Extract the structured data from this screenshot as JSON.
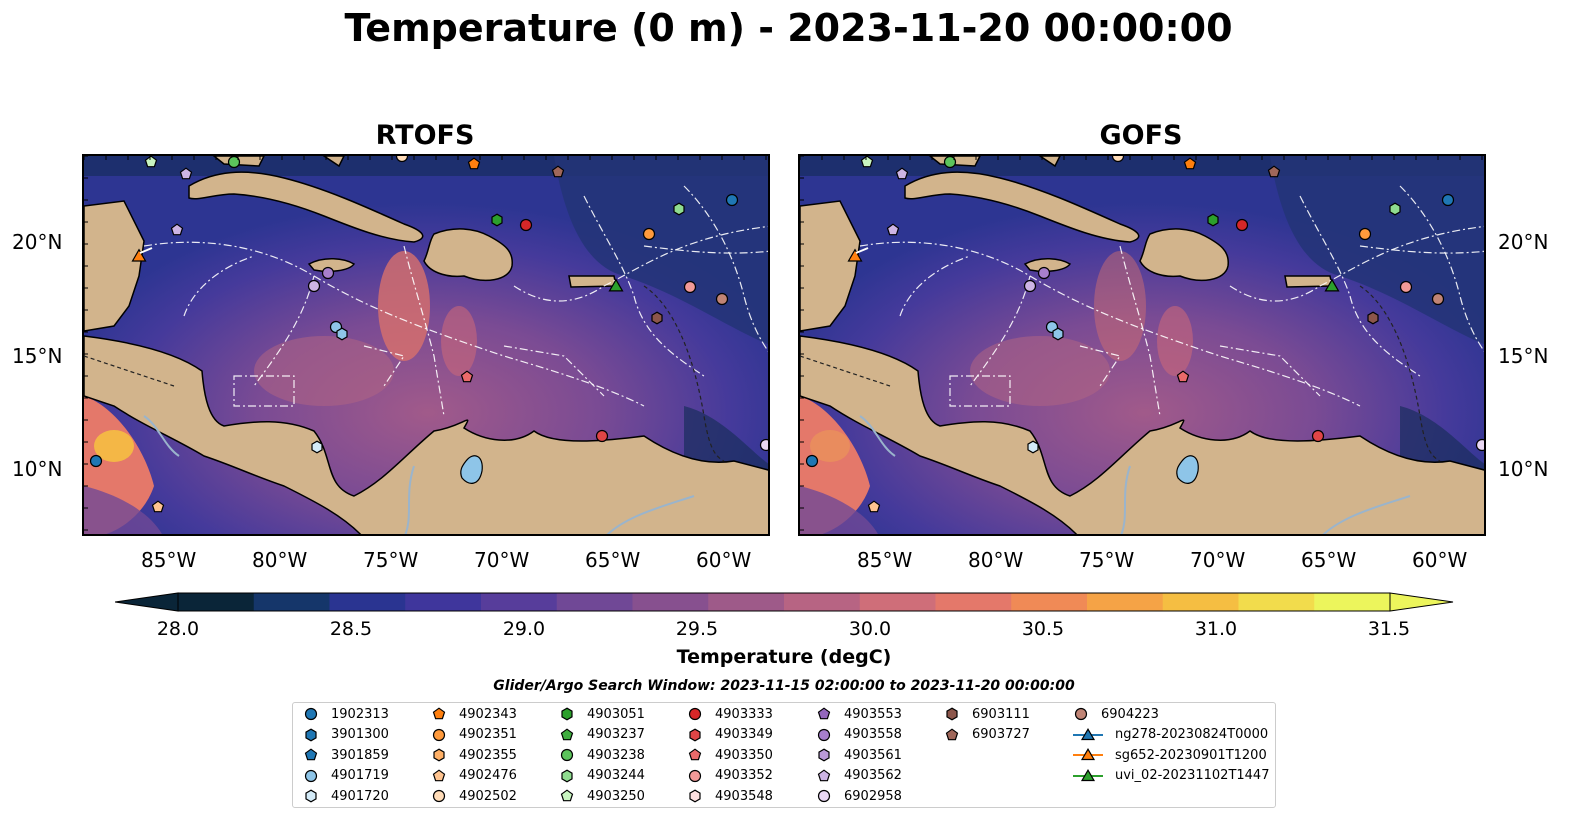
{
  "title": "Temperature (0 m) - 2023-11-20 00:00:00",
  "panels": [
    {
      "title": "RTOFS"
    },
    {
      "title": "GOFS"
    }
  ],
  "lat_labels": [
    "20°N",
    "15°N",
    "10°N"
  ],
  "lon_labels": [
    "85°W",
    "80°W",
    "75°W",
    "70°W",
    "65°W",
    "60°W"
  ],
  "colorbar": {
    "label": "Temperature (degC)",
    "ticks": [
      "28.0",
      "28.5",
      "29.0",
      "29.5",
      "30.0",
      "30.5",
      "31.0",
      "31.5"
    ],
    "colors": [
      "#0a2538",
      "#15366a",
      "#2a3491",
      "#3f369c",
      "#573d9b",
      "#704896",
      "#87508f",
      "#9e5a89",
      "#b76483",
      "#cf6e79",
      "#e4786a",
      "#f08a56",
      "#f5a346",
      "#f5be42",
      "#f2dc4c",
      "#ecf55c"
    ]
  },
  "search_window": "Glider/Argo Search Window: 2023-11-15 02:00:00 to 2023-11-20 00:00:00",
  "legend": [
    {
      "label": "1902313",
      "marker": "circle",
      "color": "#1f77b4"
    },
    {
      "label": "3901300",
      "marker": "hexagon",
      "color": "#1f77b4"
    },
    {
      "label": "3901859",
      "marker": "pentagon",
      "color": "#1f77b4"
    },
    {
      "label": "4901719",
      "marker": "circle",
      "color": "#8ec5e8"
    },
    {
      "label": "4901720",
      "marker": "hexagon",
      "color": "#d4ebf8"
    },
    {
      "label": "4902343",
      "marker": "pentagon",
      "color": "#ff7f0e"
    },
    {
      "label": "4902351",
      "marker": "circle",
      "color": "#ff9a3c"
    },
    {
      "label": "4902355",
      "marker": "hexagon",
      "color": "#ffb066"
    },
    {
      "label": "4902476",
      "marker": "pentagon",
      "color": "#ffc490"
    },
    {
      "label": "4902502",
      "marker": "circle",
      "color": "#ffdcb8"
    },
    {
      "label": "4903051",
      "marker": "hexagon",
      "color": "#2ca02c"
    },
    {
      "label": "4903237",
      "marker": "pentagon",
      "color": "#3fae3f"
    },
    {
      "label": "4903238",
      "marker": "circle",
      "color": "#5cc45c"
    },
    {
      "label": "4903244",
      "marker": "hexagon",
      "color": "#8fdc8f"
    },
    {
      "label": "4903250",
      "marker": "pentagon",
      "color": "#c8f5c0"
    },
    {
      "label": "4903333",
      "marker": "circle",
      "color": "#d62728"
    },
    {
      "label": "4903349",
      "marker": "hexagon",
      "color": "#e04546"
    },
    {
      "label": "4903350",
      "marker": "pentagon",
      "color": "#ea6a6a"
    },
    {
      "label": "4903352",
      "marker": "circle",
      "color": "#f29a98"
    },
    {
      "label": "4903548",
      "marker": "hexagon",
      "color": "#fde0e0"
    },
    {
      "label": "4903553",
      "marker": "pentagon",
      "color": "#9467bd"
    },
    {
      "label": "4903558",
      "marker": "circle",
      "color": "#a77fcc"
    },
    {
      "label": "4903561",
      "marker": "hexagon",
      "color": "#bb9ad8"
    },
    {
      "label": "4903562",
      "marker": "pentagon",
      "color": "#cdb4e4"
    },
    {
      "label": "6902958",
      "marker": "circle",
      "color": "#ead8f4"
    },
    {
      "label": "6903111",
      "marker": "hexagon",
      "color": "#8c564b"
    },
    {
      "label": "6903727",
      "marker": "pentagon",
      "color": "#a0675a"
    },
    {
      "label": "6904223",
      "marker": "circle",
      "color": "#c08475"
    },
    {
      "label": "ng278-20230824T0000",
      "marker": "triangle",
      "color": "#1f77b4"
    },
    {
      "label": "sg652-20230901T1200",
      "marker": "triangle",
      "color": "#ff7f0e"
    },
    {
      "label": "uvi_02-20231102T1447",
      "marker": "triangle",
      "color": "#2ca02c"
    }
  ]
}
